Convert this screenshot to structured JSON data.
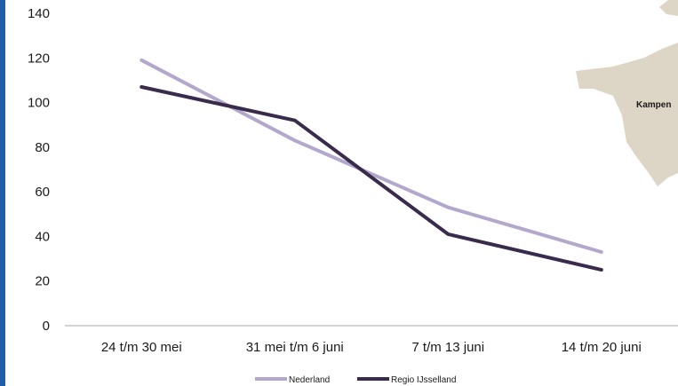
{
  "chart_data": {
    "type": "line",
    "categories": [
      "24 t/m 30 mei",
      "31 mei t/m 6 juni",
      "7  t/m 13 juni",
      "14 t/m 20 juni"
    ],
    "series": [
      {
        "name": "Nederland",
        "values": [
          119,
          83,
          53,
          33
        ],
        "color": "#b3a7cc"
      },
      {
        "name": "Regio IJsselland",
        "values": [
          107,
          92,
          41,
          25
        ],
        "color": "#3a2b4d"
      }
    ],
    "ylim": [
      0,
      140
    ],
    "yticks": [
      0,
      20,
      40,
      60,
      80,
      100,
      120,
      140
    ],
    "grid": false,
    "legend_position": "bottom"
  },
  "map": {
    "label": "Kampen",
    "fill_color": "#ddd5c5"
  },
  "colors": {
    "left_bar": "#1f5fa8",
    "axis": "#a6a6a6"
  }
}
